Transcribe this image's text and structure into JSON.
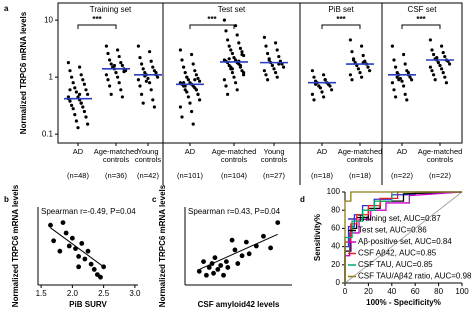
{
  "chart_data": [
    {
      "panel": "a",
      "type": "strip",
      "y_label": "Normalized TRPC6 mRNA levels",
      "log_y": true,
      "ylim": [
        0.07,
        20
      ],
      "yticks": [
        0.1,
        1,
        10
      ],
      "color": "#000000",
      "median_color": "#2a3fc0",
      "groups": [
        {
          "title": "Training set",
          "significance": "***",
          "categories": [
            "AD",
            "Age-matched controls",
            "Young controls"
          ],
          "n_labels": [
            "(n=48)",
            "(n=36)",
            "(n=42)"
          ],
          "medians": [
            0.42,
            1.4,
            1.1
          ],
          "values": [
            [
              1.8,
              1.5,
              1.3,
              1.1,
              1.0,
              0.9,
              0.8,
              0.75,
              0.65,
              0.6,
              0.55,
              0.5,
              0.45,
              0.42,
              0.4,
              0.38,
              0.35,
              0.32,
              0.3,
              0.28,
              0.25,
              0.22,
              0.2,
              0.17,
              0.15,
              0.13,
              0.45,
              0.5,
              0.6,
              0.35
            ],
            [
              3.5,
              3.0,
              2.6,
              2.3,
              2.0,
              1.8,
              1.7,
              1.6,
              1.5,
              1.4,
              1.4,
              1.3,
              1.2,
              1.1,
              1.0,
              0.9,
              0.8,
              0.7,
              0.6,
              0.5,
              0.45,
              1.5,
              1.25,
              1.6
            ],
            [
              3.5,
              2.8,
              2.2,
              1.9,
              1.7,
              1.5,
              1.4,
              1.3,
              1.2,
              1.1,
              1.1,
              1.0,
              0.95,
              0.9,
              0.8,
              0.7,
              0.6,
              0.5,
              0.4,
              0.35,
              0.3,
              1.05,
              1.2,
              0.85
            ]
          ]
        },
        {
          "title": "Test set",
          "significance": "***",
          "categories": [
            "AD",
            "Age-matched controls",
            "Young controls"
          ],
          "n_labels": [
            "(n=101)",
            "(n=104)",
            "(n=27)"
          ],
          "medians": [
            0.75,
            1.85,
            1.8
          ],
          "values": [
            [
              3.0,
              2.5,
              2.0,
              1.7,
              1.5,
              1.3,
              1.2,
              1.1,
              1.0,
              0.95,
              0.9,
              0.85,
              0.8,
              0.8,
              0.75,
              0.75,
              0.7,
              0.7,
              0.65,
              0.6,
              0.6,
              0.55,
              0.5,
              0.45,
              0.4,
              0.35,
              0.3,
              0.25,
              0.2,
              0.15,
              0.8,
              0.9,
              0.7,
              0.6,
              1.0,
              0.5
            ],
            [
              10,
              8,
              6.5,
              5.5,
              4.5,
              4,
              3.5,
              3.2,
              3,
              2.8,
              2.6,
              2.4,
              2.2,
              2,
              2,
              1.9,
              1.8,
              1.8,
              1.7,
              1.6,
              1.5,
              1.4,
              1.3,
              1.2,
              1.1,
              1,
              0.9,
              0.8,
              0.7,
              0.6,
              0.5,
              1.9,
              2.1,
              1.6,
              1.5,
              2.5,
              1.4,
              1.2
            ],
            [
              5,
              4,
              3.5,
              3,
              2.6,
              2.3,
              2.0,
              1.9,
              1.8,
              1.7,
              1.6,
              1.5,
              1.4,
              1.3,
              1.2,
              1.1,
              1.0,
              0.9,
              1.7,
              2.1
            ]
          ]
        },
        {
          "title": "PiB set",
          "significance": "***",
          "categories": [
            "AD",
            "Age-matched controls"
          ],
          "n_labels": [
            "(n=18)",
            "(n=18)"
          ],
          "medians": [
            0.8,
            1.7
          ],
          "values": [
            [
              1.3,
              1.1,
              1.0,
              0.9,
              0.85,
              0.8,
              0.8,
              0.75,
              0.7,
              0.7,
              0.65,
              0.6,
              0.55,
              0.5,
              0.45,
              0.4,
              0.9,
              0.75
            ],
            [
              4.5,
              3.5,
              2.8,
              2.4,
              2.1,
              1.9,
              1.8,
              1.7,
              1.6,
              1.5,
              1.4,
              1.3,
              1.2,
              1.1,
              1.0,
              0.9,
              1.8,
              2.0
            ]
          ]
        },
        {
          "title": "CSF set",
          "significance": "***",
          "categories": [
            "AD",
            "Age-matched controls"
          ],
          "n_labels": [
            "(n=22)",
            "(n=22)"
          ],
          "medians": [
            1.1,
            2.0
          ],
          "values": [
            [
              3.5,
              2.5,
              2.0,
              1.7,
              1.5,
              1.3,
              1.2,
              1.1,
              1.1,
              1.0,
              0.95,
              0.9,
              0.85,
              0.8,
              0.7,
              0.6,
              0.5,
              0.45,
              0.4,
              1.0,
              1.2,
              0.9
            ],
            [
              4.5,
              3.5,
              3,
              2.7,
              2.5,
              2.3,
              2.1,
              2,
              2,
              1.9,
              1.8,
              1.7,
              1.6,
              1.5,
              1.4,
              1.3,
              1.2,
              1.1,
              1.0,
              0.9,
              0.8,
              2.2
            ]
          ]
        }
      ]
    },
    {
      "panel": "b",
      "type": "scatter",
      "x_label": "PiB SURV",
      "y_label": "Normalized TRPC6 mRNA levels",
      "annotation": "Spearman r=-0.49, P=0.04",
      "color": "#000000",
      "xlim": [
        1.45,
        3.05
      ],
      "xticks": [
        1.5,
        {
          "value": 2,
          "label": "2.0"
        },
        2.5,
        {
          "value": 3,
          "label": "3.0"
        }
      ],
      "ylim": [
        0.2,
        1.7
      ],
      "x": [
        1.65,
        1.7,
        1.85,
        1.9,
        1.95,
        2.0,
        2.05,
        2.1,
        2.15,
        2.2,
        2.25,
        2.3,
        2.35,
        2.4,
        2.45,
        1.8,
        2.1,
        2.5
      ],
      "y": [
        1.35,
        1.05,
        1.4,
        1.2,
        0.95,
        1.1,
        0.9,
        0.75,
        1.0,
        0.7,
        0.85,
        0.6,
        0.5,
        0.4,
        0.35,
        0.85,
        0.55,
        0.55
      ],
      "fit": {
        "x": [
          1.65,
          2.5
        ],
        "y": [
          1.3,
          0.55
        ]
      }
    },
    {
      "panel": "c",
      "type": "scatter",
      "x_label": "CSF amyloid42 levels",
      "y_label": "Normalized TRPC6 mRNA levels",
      "annotation": "Spearman r=0.43, P=0.04",
      "color": "#000000",
      "xlim": [
        50,
        800
      ],
      "ylim": [
        0,
        4
      ],
      "x": [
        150,
        180,
        200,
        220,
        240,
        250,
        260,
        280,
        300,
        320,
        340,
        350,
        380,
        400,
        420,
        450,
        480,
        500,
        550,
        600,
        650,
        700
      ],
      "y": [
        0.7,
        1.2,
        0.5,
        0.9,
        1.1,
        0.6,
        1.4,
        0.8,
        1.0,
        0.5,
        1.2,
        0.9,
        2.3,
        1.8,
        1.1,
        1.5,
        2.2,
        1.6,
        2.0,
        2.5,
        1.9,
        3.2
      ],
      "fit": {
        "x": [
          150,
          700
        ],
        "y": [
          0.8,
          2.6
        ]
      }
    },
    {
      "panel": "d",
      "type": "line",
      "x_label": "100% - Specificity%",
      "y_label": "Sensitivity%",
      "xlim": [
        0,
        100
      ],
      "ylim": [
        0,
        100
      ],
      "xticks": [
        0,
        20,
        40,
        60,
        80,
        100
      ],
      "yticks": [
        0,
        20,
        40,
        60,
        80,
        100
      ],
      "legend": "lower-right",
      "series": [
        {
          "name": "Training set, AUC=0.87",
          "color": "#3333cc",
          "x": [
            0,
            0,
            3,
            3,
            8,
            8,
            15,
            15,
            25,
            25,
            40,
            40,
            60,
            60,
            100
          ],
          "values": [
            0,
            40,
            40,
            62,
            62,
            75,
            75,
            85,
            85,
            92,
            92,
            97,
            97,
            100,
            100
          ]
        },
        {
          "name": "Test set, AUC=0.86",
          "color": "#000000",
          "x": [
            0,
            0,
            5,
            5,
            10,
            10,
            20,
            20,
            30,
            30,
            50,
            50,
            100
          ],
          "values": [
            0,
            35,
            35,
            60,
            60,
            72,
            72,
            82,
            82,
            90,
            90,
            98,
            100
          ]
        },
        {
          "name": "Aβ-positive set, AUC=0.84",
          "color": "#cc00cc",
          "x": [
            0,
            0,
            4,
            4,
            12,
            12,
            22,
            22,
            35,
            35,
            55,
            55,
            100
          ],
          "values": [
            0,
            30,
            30,
            55,
            55,
            70,
            70,
            80,
            80,
            88,
            88,
            96,
            100
          ]
        },
        {
          "name": "CSF Aβ42, AUC=0.85",
          "color": "#e02020",
          "x": [
            0,
            0,
            5,
            5,
            10,
            10,
            20,
            20,
            30,
            30,
            45,
            45,
            100
          ],
          "values": [
            0,
            45,
            45,
            65,
            65,
            75,
            75,
            85,
            85,
            93,
            93,
            100,
            100
          ]
        },
        {
          "name": "CSF TAU, AUC=0.85",
          "color": "#00aa66",
          "x": [
            0,
            0,
            6,
            6,
            15,
            15,
            25,
            25,
            40,
            40,
            100
          ],
          "values": [
            0,
            50,
            50,
            68,
            68,
            80,
            80,
            90,
            90,
            100,
            100
          ]
        },
        {
          "name": "CSF TAU/Aβ42 ratio, AUC=0.98",
          "color": "#8b7d1a",
          "x": [
            0,
            0,
            5,
            5,
            100
          ],
          "values": [
            0,
            90,
            90,
            100,
            100
          ]
        }
      ]
    }
  ]
}
